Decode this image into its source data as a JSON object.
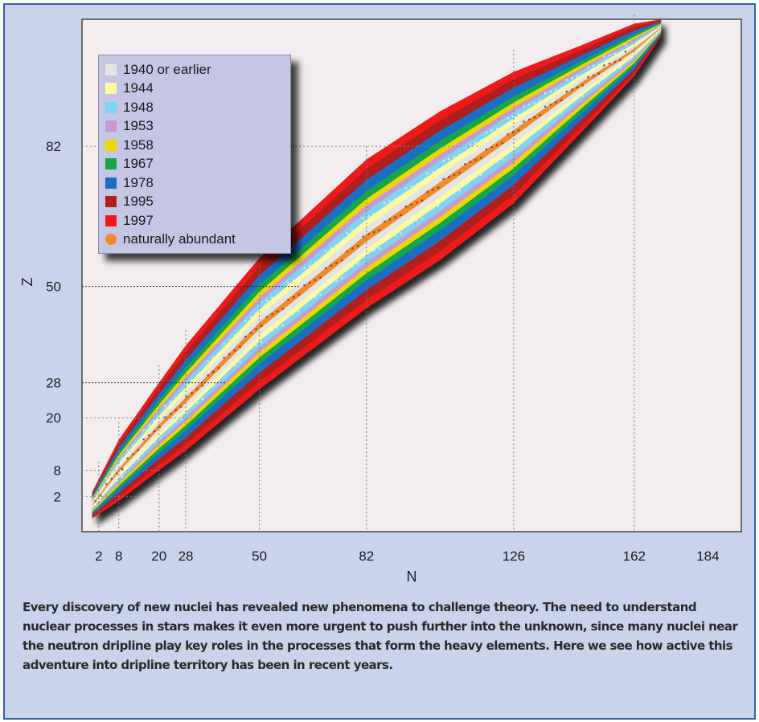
{
  "caption": "Every discovery of new nuclei has revealed new phenomena to challenge theory. The need to understand nuclear processes in stars makes it even more urgent to push further into the unknown, since many nuclei near the neutron dripline play key roles in the processes that form the heavy elements. Here we see how active this adventure into dripline territory has been in recent years.",
  "chart_data": {
    "type": "heatmap",
    "xlabel": "N",
    "ylabel": "Z",
    "xlim": [
      -3,
      194
    ],
    "ylim": [
      -6,
      111
    ],
    "xticks": [
      2,
      8,
      20,
      28,
      50,
      82,
      126,
      162,
      184
    ],
    "yticks": [
      2,
      8,
      20,
      28,
      50,
      82
    ],
    "legend_position": "top-left",
    "legend": [
      {
        "label": "1940 or earlier",
        "color": "#e4e4e4",
        "shape": "square"
      },
      {
        "label": "1944",
        "color": "#fdfaa0",
        "shape": "square"
      },
      {
        "label": "1948",
        "color": "#7fd4f4",
        "shape": "square"
      },
      {
        "label": "1953",
        "color": "#c69ad0",
        "shape": "square"
      },
      {
        "label": "1958",
        "color": "#ecd800",
        "shape": "square"
      },
      {
        "label": "1967",
        "color": "#16a64a",
        "shape": "square"
      },
      {
        "label": "1978",
        "color": "#1a6fc4",
        "shape": "square"
      },
      {
        "label": "1995",
        "color": "#b01e1e",
        "shape": "square"
      },
      {
        "label": "1997",
        "color": "#ee1a1a",
        "shape": "square"
      },
      {
        "label": "naturally abundant",
        "color": "#f08a2a",
        "shape": "circle"
      }
    ],
    "band_bands": [
      {
        "year": "1997",
        "width": 1.0
      },
      {
        "year": "1995",
        "width": 0.88
      },
      {
        "year": "1978",
        "width": 0.74
      },
      {
        "year": "1967",
        "width": 0.6
      },
      {
        "year": "1958",
        "width": 0.5
      },
      {
        "year": "1953",
        "width": 0.42
      },
      {
        "year": "1948",
        "width": 0.34
      },
      {
        "year": "1944",
        "width": 0.24
      },
      {
        "year": "1940 or earlier",
        "width": 0.15
      },
      {
        "year": "naturally abundant",
        "width": 0.05
      }
    ],
    "stability_line": {
      "N": [
        0,
        2,
        8,
        20,
        28,
        50,
        82,
        104,
        126,
        146,
        162,
        170
      ],
      "Z": [
        0,
        2,
        8,
        18,
        24,
        41,
        61,
        73,
        85,
        96,
        104,
        109
      ]
    },
    "band_width_Z": [
      3,
      4,
      7,
      10,
      12,
      15,
      17,
      17,
      15,
      10,
      6,
      2
    ],
    "band_skew_Z": [
      0,
      0,
      0,
      0,
      0.5,
      0.5,
      1,
      0,
      -1,
      -1,
      0,
      0
    ]
  }
}
